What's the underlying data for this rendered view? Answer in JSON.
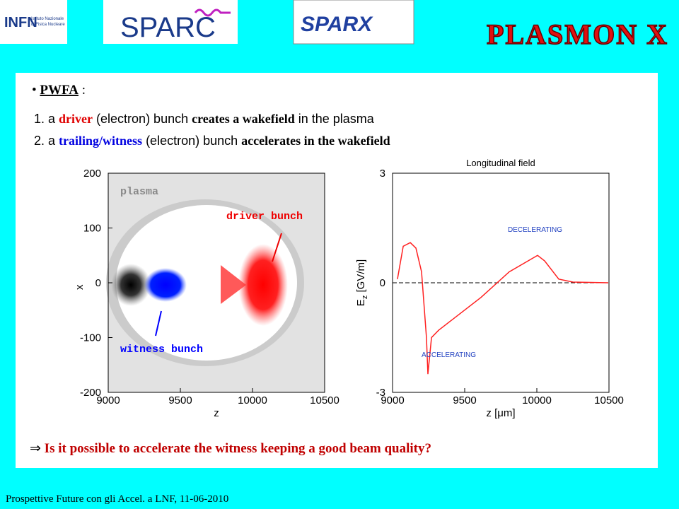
{
  "logos": {
    "infn": "INFN",
    "infn_sub": [
      "Istituto Nazionale",
      "di Fisica Nucleare"
    ],
    "sparc": "SPARC",
    "sparx": "SPARX",
    "plasmonx": "PLASMON X"
  },
  "content": {
    "bullet": {
      "term": "PWFA",
      "after": " :"
    },
    "items": [
      {
        "number": "1.",
        "segments": [
          {
            "text": "a ",
            "style": "plain"
          },
          {
            "text": "driver",
            "style": "red"
          },
          {
            "text": " (electron) bunch ",
            "style": "plain"
          },
          {
            "text": "creates a wakefield",
            "style": "bold"
          },
          {
            "text": " in the plasma",
            "style": "plain"
          }
        ]
      },
      {
        "number": "2.",
        "segments": [
          {
            "text": "a ",
            "style": "plain"
          },
          {
            "text": "trailing/witness",
            "style": "blue"
          },
          {
            "text": " (electron) bunch ",
            "style": "plain"
          },
          {
            "text": "accelerates in the wakefield",
            "style": "bold"
          }
        ]
      }
    ],
    "question": {
      "symbol": "⇒",
      "text": "Is it possible to accelerate the witness keeping a good beam quality?"
    }
  },
  "plots": [
    {
      "type": "density",
      "xlabel": "z",
      "ylabel": "x",
      "xlim": [
        9000,
        10500
      ],
      "ylim": [
        -200,
        200
      ],
      "xticks": [
        9000,
        9500,
        10000,
        10500
      ],
      "yticks": [
        -200,
        -100,
        0,
        100,
        200
      ],
      "annotations": [
        "plasma",
        "driver bunch",
        "witness bunch"
      ]
    },
    {
      "type": "line",
      "title": "Longitudinal field",
      "xlabel": "z [μm]",
      "ylabel": [
        "E",
        "z",
        " [GV/m]"
      ],
      "xlim": [
        9000,
        10500
      ],
      "ylim": [
        -3,
        3
      ],
      "xticks": [
        9000,
        9500,
        10000,
        10500
      ],
      "yticks": [
        -3,
        0,
        3
      ],
      "color": "#ff2020",
      "x": [
        9034,
        9074,
        9123,
        9162,
        9201,
        9235,
        9245,
        9270,
        9319,
        9417,
        9613,
        9809,
        10005,
        10054,
        10152,
        10250,
        10495
      ],
      "values": [
        0.1,
        1.0,
        1.1,
        0.95,
        0.3,
        -1.5,
        -2.5,
        -1.5,
        -1.3,
        -1.0,
        -0.4,
        0.3,
        0.75,
        0.6,
        0.1,
        0.02,
        0.0
      ],
      "annotations": [
        "DECELERATING",
        "ACCELERATING"
      ]
    }
  ],
  "footer": "Prospettive Future con gli Accel. a LNF,  11-06-2010"
}
